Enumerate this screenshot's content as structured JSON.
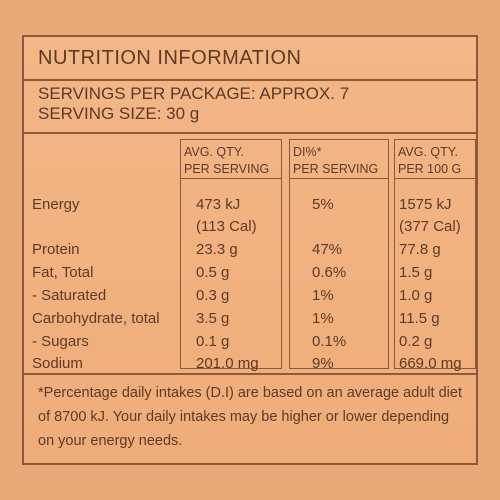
{
  "title": "NUTRITION INFORMATION",
  "servings": {
    "per_package": "SERVINGS PER PACKAGE: APPROX. 7",
    "size": "SERVING SIZE: 30 g"
  },
  "columns": {
    "avg_per_serving": [
      "AVG. QTY.",
      "PER SERVING"
    ],
    "di_per_serving": [
      "DI%*",
      "PER SERVING"
    ],
    "avg_per_100g": [
      "AVG. QTY.",
      "PER 100 G"
    ]
  },
  "rows": [
    {
      "name": "Energy",
      "per_serving": "473 kJ",
      "per_serving_2": "(113 Cal)",
      "di": "5%",
      "per_100g": "1575 kJ",
      "per_100g_2": "(377 Cal)"
    },
    {
      "name": "Protein",
      "per_serving": "23.3 g",
      "di": "47%",
      "per_100g": "77.8 g"
    },
    {
      "name": "Fat, Total",
      "per_serving": "0.5 g",
      "di": "0.6%",
      "per_100g": "1.5 g"
    },
    {
      "name": "- Saturated",
      "per_serving": "0.3 g",
      "di": "1%",
      "per_100g": "1.0 g"
    },
    {
      "name": "Carbohydrate, total",
      "per_serving": "3.5 g",
      "di": "1%",
      "per_100g": "11.5 g"
    },
    {
      "name": "- Sugars",
      "per_serving": "0.1 g",
      "di": "0.1%",
      "per_100g": "0.2 g"
    },
    {
      "name": "Sodium",
      "per_serving": "201.0 mg",
      "di": "9%",
      "per_100g": "669.0 mg"
    }
  ],
  "footnote": "*Percentage daily intakes (D.I) are based on an average adult diet of 8700 kJ. Your daily intakes may be higher or lower depending on your energy needs."
}
